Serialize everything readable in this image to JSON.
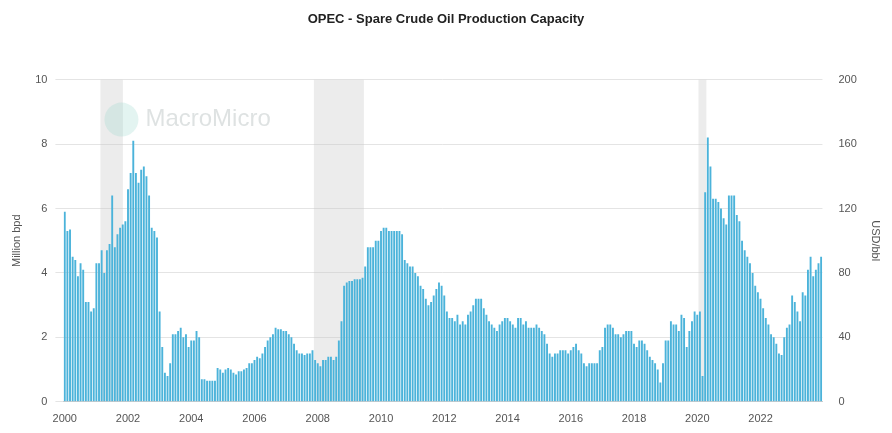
{
  "chart_data": {
    "type": "bar",
    "title": "OPEC - Spare Crude Oil Production Capacity",
    "y_label": "Million bpd",
    "y2_label": "USD/bbl",
    "annotations": [
      "MacroMicro"
    ],
    "color": "#4bb3da",
    "grid": true,
    "ylim": [
      0,
      10
    ],
    "yticks": [
      0,
      2,
      4,
      6,
      8,
      10
    ],
    "y2lim": [
      0,
      200
    ],
    "y2ticks": [
      0,
      40,
      80,
      120,
      160,
      200
    ],
    "shaded_ranges": [
      [
        2001.17,
        2001.88
      ],
      [
        2007.92,
        2009.5
      ],
      [
        2020.08,
        2020.33
      ]
    ],
    "categories": [
      "2000",
      null,
      null,
      null,
      null,
      null,
      null,
      null,
      null,
      null,
      null,
      null,
      null,
      null,
      null,
      null,
      null,
      null,
      null,
      null,
      null,
      null,
      null,
      null,
      "2002",
      null,
      null,
      null,
      null,
      null,
      null,
      null,
      null,
      null,
      null,
      null,
      null,
      null,
      null,
      null,
      null,
      null,
      null,
      null,
      null,
      null,
      null,
      null,
      "2004",
      null,
      null,
      null,
      null,
      null,
      null,
      null,
      null,
      null,
      null,
      null,
      null,
      null,
      null,
      null,
      null,
      null,
      null,
      null,
      null,
      null,
      null,
      null,
      "2006",
      null,
      null,
      null,
      null,
      null,
      null,
      null,
      null,
      null,
      null,
      null,
      null,
      null,
      null,
      null,
      null,
      null,
      null,
      null,
      null,
      null,
      null,
      null,
      "2008",
      null,
      null,
      null,
      null,
      null,
      null,
      null,
      null,
      null,
      null,
      null,
      null,
      null,
      null,
      null,
      null,
      null,
      null,
      null,
      null,
      null,
      null,
      null,
      "2010",
      null,
      null,
      null,
      null,
      null,
      null,
      null,
      null,
      null,
      null,
      null,
      null,
      null,
      null,
      null,
      null,
      null,
      null,
      null,
      null,
      null,
      null,
      null,
      "2012",
      null,
      null,
      null,
      null,
      null,
      null,
      null,
      null,
      null,
      null,
      null,
      null,
      null,
      null,
      null,
      null,
      null,
      null,
      null,
      null,
      null,
      null,
      null,
      "2014",
      null,
      null,
      null,
      null,
      null,
      null,
      null,
      null,
      null,
      null,
      null,
      null,
      null,
      null,
      null,
      null,
      null,
      null,
      null,
      null,
      null,
      null,
      null,
      "2016",
      null,
      null,
      null,
      null,
      null,
      null,
      null,
      null,
      null,
      null,
      null,
      null,
      null,
      null,
      null,
      null,
      null,
      null,
      null,
      null,
      null,
      null,
      null,
      "2018",
      null,
      null,
      null,
      null,
      null,
      null,
      null,
      null,
      null,
      null,
      null,
      null,
      null,
      null,
      null,
      null,
      null,
      null,
      null,
      null,
      null,
      null,
      null,
      "2020",
      null,
      null,
      null,
      null,
      null,
      null,
      null,
      null,
      null,
      null,
      null,
      null,
      null,
      null,
      null,
      null,
      null,
      null,
      null,
      null,
      null,
      null,
      null,
      "2022",
      null,
      null,
      null,
      null,
      null,
      null,
      null,
      null,
      null,
      null,
      null,
      null,
      null,
      null,
      null,
      null,
      null,
      null,
      null,
      null,
      null,
      null,
      null
    ],
    "values": [
      5.9,
      5.3,
      5.35,
      4.5,
      4.4,
      3.9,
      4.3,
      4.1,
      3.1,
      3.1,
      2.8,
      2.9,
      4.3,
      4.3,
      4.7,
      4.0,
      4.7,
      4.9,
      6.4,
      4.8,
      5.2,
      5.4,
      5.5,
      5.6,
      6.6,
      7.1,
      8.1,
      7.1,
      6.8,
      7.2,
      7.3,
      7.0,
      6.4,
      5.4,
      5.3,
      5.1,
      2.8,
      1.7,
      0.9,
      0.8,
      1.2,
      2.1,
      2.1,
      2.2,
      2.3,
      2.0,
      2.1,
      1.7,
      1.9,
      1.9,
      2.2,
      2.0,
      0.7,
      0.7,
      0.65,
      0.65,
      0.65,
      0.65,
      1.05,
      1.0,
      0.9,
      1.0,
      1.05,
      1.0,
      0.9,
      0.85,
      0.95,
      0.95,
      1.0,
      1.05,
      1.2,
      1.2,
      1.3,
      1.4,
      1.35,
      1.5,
      1.7,
      1.9,
      2.0,
      2.1,
      2.3,
      2.25,
      2.25,
      2.2,
      2.2,
      2.1,
      2.0,
      1.8,
      1.6,
      1.5,
      1.5,
      1.45,
      1.5,
      1.5,
      1.6,
      1.3,
      1.2,
      1.1,
      1.3,
      1.3,
      1.4,
      1.4,
      1.3,
      1.4,
      1.9,
      2.5,
      3.6,
      3.7,
      3.75,
      3.75,
      3.8,
      3.8,
      3.8,
      3.85,
      4.2,
      4.8,
      4.8,
      4.8,
      5.0,
      5.0,
      5.3,
      5.4,
      5.4,
      5.3,
      5.3,
      5.3,
      5.3,
      5.3,
      5.2,
      4.4,
      4.3,
      4.2,
      4.2,
      4.0,
      3.9,
      3.6,
      3.5,
      3.2,
      3.0,
      3.1,
      3.3,
      3.5,
      3.7,
      3.6,
      3.3,
      2.8,
      2.6,
      2.6,
      2.5,
      2.7,
      2.4,
      2.5,
      2.4,
      2.7,
      2.8,
      3.0,
      3.2,
      3.2,
      3.2,
      2.9,
      2.7,
      2.5,
      2.4,
      2.3,
      2.2,
      2.4,
      2.5,
      2.6,
      2.6,
      2.5,
      2.4,
      2.3,
      2.6,
      2.6,
      2.4,
      2.5,
      2.3,
      2.3,
      2.3,
      2.4,
      2.3,
      2.2,
      2.1,
      1.8,
      1.5,
      1.4,
      1.5,
      1.5,
      1.6,
      1.6,
      1.6,
      1.5,
      1.6,
      1.7,
      1.8,
      1.6,
      1.5,
      1.2,
      1.1,
      1.2,
      1.2,
      1.2,
      1.2,
      1.6,
      1.7,
      2.3,
      2.4,
      2.4,
      2.3,
      2.1,
      2.1,
      2.0,
      2.1,
      2.2,
      2.2,
      2.2,
      1.8,
      1.7,
      1.9,
      1.9,
      1.8,
      1.6,
      1.4,
      1.3,
      1.2,
      1.0,
      0.6,
      1.2,
      1.9,
      1.9,
      2.5,
      2.4,
      2.4,
      2.2,
      2.7,
      2.6,
      1.7,
      2.2,
      2.5,
      2.8,
      2.7,
      2.8,
      0.8,
      6.5,
      8.2,
      7.3,
      6.3,
      6.3,
      6.2,
      6.0,
      5.7,
      5.5,
      6.4,
      6.4,
      6.4,
      5.8,
      5.6,
      5.0,
      4.7,
      4.5,
      4.3,
      4.0,
      3.6,
      3.4,
      3.2,
      2.9,
      2.6,
      2.4,
      2.1,
      2.0,
      1.8,
      1.5,
      1.45,
      2.0,
      2.3,
      2.4,
      3.3,
      3.1,
      2.8,
      2.5,
      3.4,
      3.3,
      4.1,
      4.5,
      3.9,
      4.1,
      4.3,
      4.5
    ]
  }
}
